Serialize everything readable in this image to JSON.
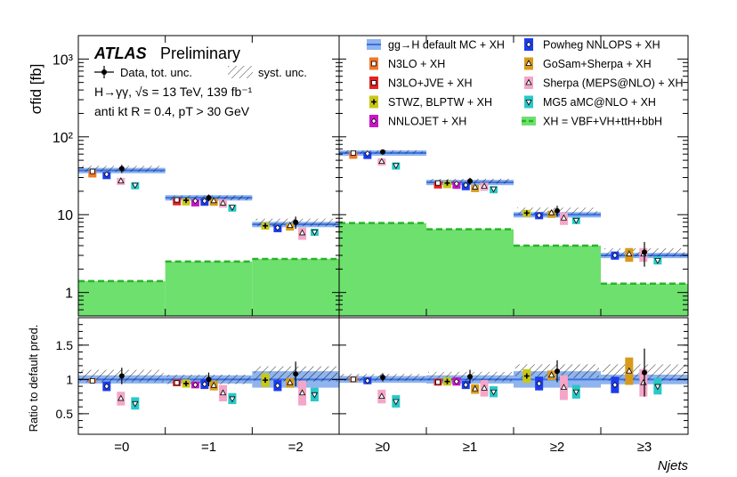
{
  "colors": {
    "default": "#3a6fe0",
    "band": "#8fb4ee",
    "n3lo": "#f07828",
    "n3lojve": "#e82020",
    "stwz": "#c8c814",
    "nnlojet": "#c814c8",
    "powheg": "#1a3cf0",
    "gosam": "#d89a1a",
    "sherpa": "#f4a6c8",
    "mg5": "#28c8c8",
    "xh": "#6ee06e",
    "xhline": "#28b428"
  },
  "chart_data": {
    "type": "bar",
    "ylabel": "σfid [fb]",
    "ratio_ylabel": "Ratio to default pred.",
    "xlabel": "Njets",
    "yscale": "log",
    "ylim": [
      0.5,
      2000
    ],
    "ratio_ylim": [
      0.2,
      1.9
    ],
    "yticks": [
      "1",
      "10",
      "10²",
      "10³"
    ],
    "ratio_yticks": [
      "0.5",
      "1",
      "1.5"
    ],
    "categories": [
      "=0",
      "=1",
      "=2",
      "≥0",
      "≥1",
      "≥2",
      "≥3"
    ],
    "series": [
      {
        "name": "gg→H default MC + XH",
        "values": [
          37,
          16.5,
          7.5,
          62,
          26,
          10,
          3.0
        ]
      },
      {
        "name": "Data, tot. unc.",
        "values": [
          39,
          16.5,
          8,
          64,
          27,
          11.2,
          3.3
        ]
      },
      {
        "name": "N3LO + XH",
        "values": [
          36,
          null,
          null,
          62,
          null,
          null,
          null
        ]
      },
      {
        "name": "N3LO+JVE + XH",
        "values": [
          null,
          15.5,
          null,
          null,
          25.5,
          null,
          null
        ]
      },
      {
        "name": "STWZ, BLPTW + XH",
        "values": [
          null,
          15.3,
          7.2,
          null,
          25.5,
          10.5,
          null
        ]
      },
      {
        "name": "NNLOJET + XH",
        "values": [
          null,
          15,
          null,
          null,
          25,
          null,
          null
        ]
      },
      {
        "name": "Powheg NNLOPS + XH",
        "values": [
          33,
          15,
          6.8,
          61,
          24,
          9.8,
          3.0
        ]
      },
      {
        "name": "GoSam+Sherpa + XH",
        "values": [
          null,
          15,
          7.2,
          null,
          22.5,
          10.5,
          3.1
        ]
      },
      {
        "name": "Sherpa (MEPS@NLO) + XH",
        "values": [
          27,
          14,
          5.8,
          48,
          23,
          9,
          3.1
        ]
      },
      {
        "name": "MG5 aMC@NLO + XH",
        "values": [
          24,
          12.5,
          6,
          43,
          21.5,
          8.5,
          2.6
        ]
      },
      {
        "name": "XH = VBF+VH+ttH+bbH",
        "values": [
          1.4,
          2.5,
          2.7,
          7.8,
          6.5,
          4,
          1.3
        ]
      }
    ],
    "ratio": {
      "data": [
        1.05,
        1.0,
        1.08,
        1.03,
        1.04,
        1.12,
        1.1
      ],
      "syst_half": [
        0.09,
        0.07,
        0.11,
        0.05,
        0.07,
        0.1,
        0.12
      ],
      "tot_err": [
        0.12,
        0.1,
        0.18,
        0.06,
        0.1,
        0.16,
        0.35
      ],
      "default_band": [
        0.06,
        0.06,
        0.12,
        0.05,
        0.06,
        0.12,
        0.07
      ],
      "models": [
        {
          "key": "n3lo",
          "marker": "sq",
          "values": [
            0.98,
            null,
            null,
            1.0,
            null,
            null,
            null
          ],
          "err": [
            0.03,
            0,
            0,
            0.04,
            0,
            0,
            0
          ]
        },
        {
          "key": "n3lojve",
          "marker": "sq",
          "values": [
            null,
            0.95,
            null,
            null,
            0.96,
            null,
            null
          ],
          "err": [
            0,
            0.05,
            0,
            0,
            0.05,
            0,
            0
          ]
        },
        {
          "key": "stwz",
          "marker": "cross",
          "values": [
            null,
            0.94,
            0.99,
            null,
            0.97,
            1.05,
            null
          ],
          "err": [
            0,
            0.06,
            0.1,
            0,
            0.06,
            0.1,
            0
          ]
        },
        {
          "key": "nnlojet",
          "marker": "diamond",
          "values": [
            null,
            0.92,
            null,
            null,
            0.97,
            null,
            null
          ],
          "err": [
            0,
            0.05,
            0,
            0,
            0.06,
            0,
            0
          ]
        },
        {
          "key": "powheg",
          "marker": "diamond",
          "values": [
            0.9,
            0.93,
            0.91,
            0.98,
            0.92,
            0.94,
            0.92
          ],
          "err": [
            0.07,
            0.07,
            0.08,
            0.05,
            0.06,
            0.1,
            0.12
          ]
        },
        {
          "key": "gosam",
          "marker": "tri",
          "values": [
            null,
            0.91,
            0.95,
            null,
            0.86,
            1.06,
            1.12
          ],
          "err": [
            0,
            0.07,
            0.07,
            0,
            0.07,
            0.07,
            0.2
          ]
        },
        {
          "key": "sherpa",
          "marker": "tri",
          "values": [
            0.72,
            0.8,
            0.8,
            0.75,
            0.87,
            0.88,
            0.95
          ],
          "err": [
            0.1,
            0.12,
            0.18,
            0.1,
            0.12,
            0.18,
            0.2
          ]
        },
        {
          "key": "mg5",
          "marker": "tri_down",
          "values": [
            0.65,
            0.72,
            0.78,
            0.68,
            0.82,
            0.82,
            0.9
          ],
          "err": [
            0.09,
            0.08,
            0.1,
            0.09,
            0.08,
            0.1,
            0.12
          ]
        }
      ]
    }
  },
  "labels": {
    "atlas": "ATLAS",
    "preliminary": "Preliminary",
    "process": "H→γγ, √s = 13 TeV, 139 fb⁻¹",
    "jets": "anti kt R = 0.4, pT > 30 GeV",
    "data_leg": "Data, tot. unc.",
    "syst_leg": "syst. unc."
  },
  "legend": [
    {
      "label": "gg→H default MC + XH",
      "style": "band"
    },
    {
      "label": "Powheg NNLOPS + XH",
      "style": "powheg"
    },
    {
      "label": "N3LO + XH",
      "style": "n3lo"
    },
    {
      "label": "GoSam+Sherpa + XH",
      "style": "gosam"
    },
    {
      "label": "N3LO+JVE + XH",
      "style": "n3lojve"
    },
    {
      "label": "Sherpa (MEPS@NLO) + XH",
      "style": "sherpa"
    },
    {
      "label": "STWZ, BLPTW + XH",
      "style": "stwz"
    },
    {
      "label": "MG5 aMC@NLO + XH",
      "style": "mg5"
    },
    {
      "label": "NNLOJET + XH",
      "style": "nnlojet"
    },
    {
      "label": "XH = VBF+VH+ttH+bbH",
      "style": "xh"
    }
  ]
}
